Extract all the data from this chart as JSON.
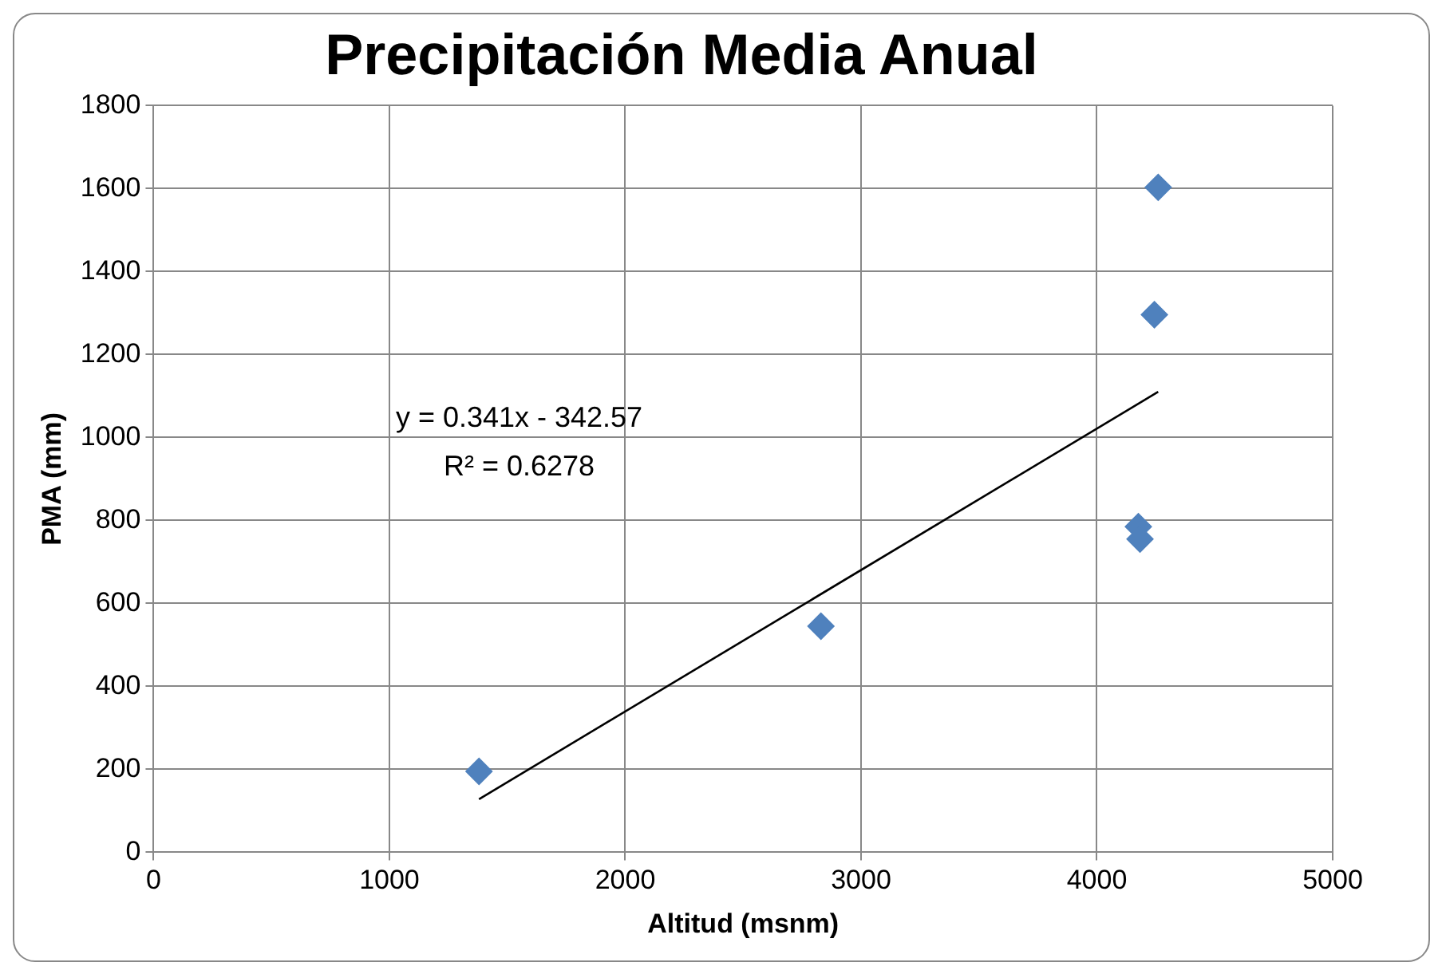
{
  "chart_data": {
    "type": "scatter",
    "title": "Precipitación Media Anual",
    "xlabel": "Altitud (msnm)",
    "ylabel": "PMA (mm)",
    "xlim": [
      0,
      5000
    ],
    "xticks": [
      0,
      1000,
      2000,
      3000,
      4000,
      5000
    ],
    "ylim": [
      0,
      1800
    ],
    "yticks": [
      0,
      200,
      400,
      600,
      800,
      1000,
      1200,
      1400,
      1600,
      1800
    ],
    "grid": true,
    "legend": false,
    "marker": "diamond",
    "series": [
      {
        "type": "scatter",
        "color": "#4f81bd",
        "x": [
          1380,
          2830,
          4176,
          4183,
          4244,
          4260
        ],
        "values": [
          195,
          545,
          785,
          755,
          1296,
          1603
        ]
      },
      {
        "type": "line",
        "color": "#000000",
        "marker": "none",
        "x": [
          1380,
          4260
        ],
        "values": [
          128,
          1110
        ]
      }
    ],
    "annotations": [
      "y = 0.341x - 342.57",
      "R² = 0.6278"
    ]
  }
}
